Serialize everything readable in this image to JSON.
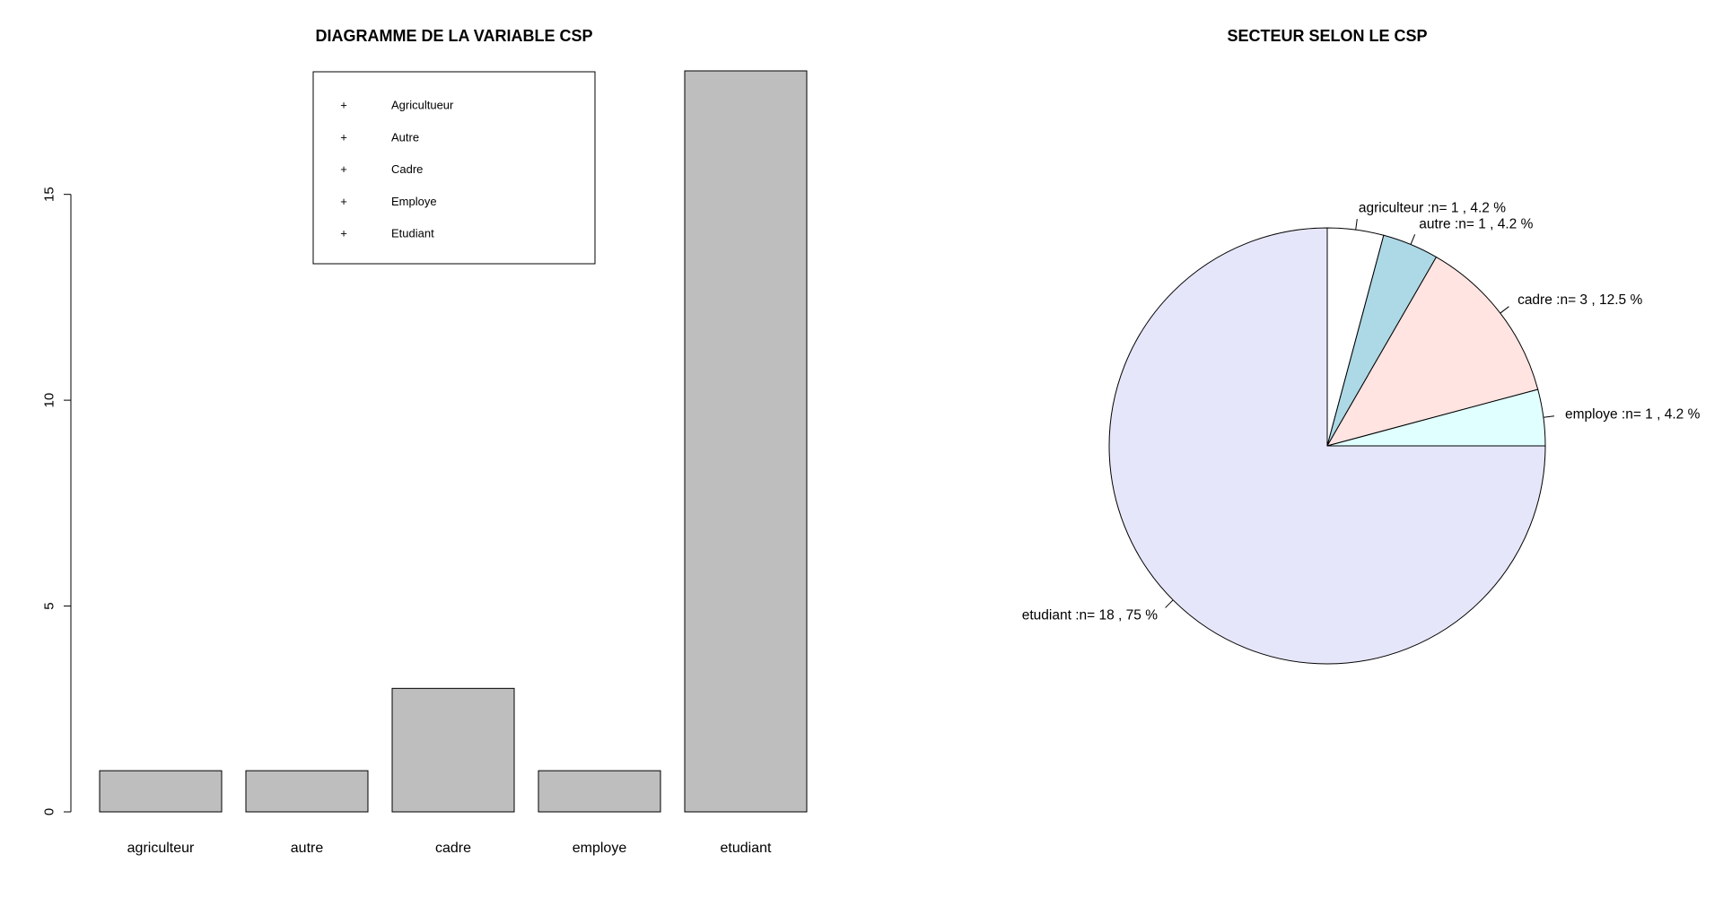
{
  "chart_data": [
    {
      "type": "bar",
      "title": "DIAGRAMME DE LA VARIABLE CSP",
      "categories": [
        "agriculteur",
        "autre",
        "cadre",
        "employe",
        "etudiant"
      ],
      "values": [
        1,
        1,
        3,
        1,
        18
      ],
      "yticks": [
        0,
        5,
        10,
        15
      ],
      "ylim": [
        0,
        18
      ],
      "bar_color": "#bebebe",
      "legend": {
        "placement": "top-center",
        "symbol": "+",
        "entries": [
          "Agricultueur",
          "Autre",
          "Cadre",
          "Employe",
          "Etudiant"
        ]
      }
    },
    {
      "type": "pie",
      "title": "SECTEUR SELON LE CSP",
      "slices": [
        {
          "label": "agriculteur :n= 1 , 4.2 %",
          "value": 1,
          "color": "#ffffff"
        },
        {
          "label": "autre :n= 1 , 4.2 %",
          "value": 1,
          "color": "#add8e6"
        },
        {
          "label": "cadre :n= 3 , 12.5 %",
          "value": 3,
          "color": "#ffe4e1"
        },
        {
          "label": "employe :n= 1 , 4.2 %",
          "value": 1,
          "color": "#e0ffff"
        },
        {
          "label": "etudiant :n= 18 , 75 %",
          "value": 18,
          "color": "#e6e6fa"
        }
      ]
    }
  ]
}
